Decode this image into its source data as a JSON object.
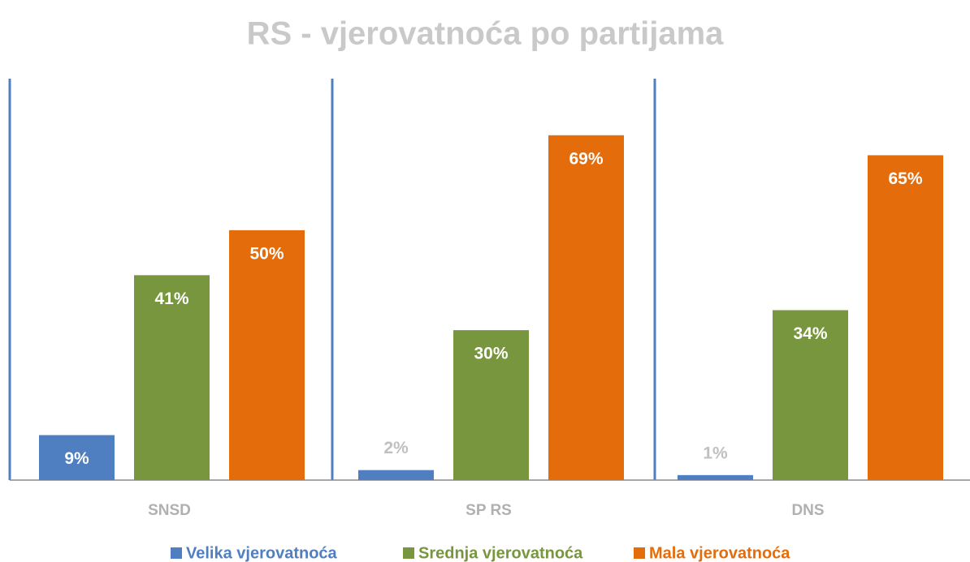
{
  "chart_data": {
    "type": "bar",
    "title": "RS - vjerovatnoća po partijama",
    "categories": [
      "SNSD",
      "SP RS",
      "DNS"
    ],
    "series": [
      {
        "name": "Velika vjerovatnoća",
        "color": "#4f7fc0",
        "values": [
          9,
          2,
          1
        ],
        "value_labels": [
          "9%",
          "2%",
          "1%"
        ]
      },
      {
        "name": "Srednja vjerovatnoća",
        "color": "#77963d",
        "values": [
          41,
          30,
          34
        ],
        "value_labels": [
          "41%",
          "30%",
          "34%"
        ]
      },
      {
        "name": "Mala vjerovatnoća",
        "color": "#e46c0a",
        "values": [
          50,
          69,
          65
        ],
        "value_labels": [
          "50%",
          "69%",
          "65%"
        ]
      }
    ],
    "ylim": [
      0,
      80
    ],
    "legend": "bottom"
  }
}
